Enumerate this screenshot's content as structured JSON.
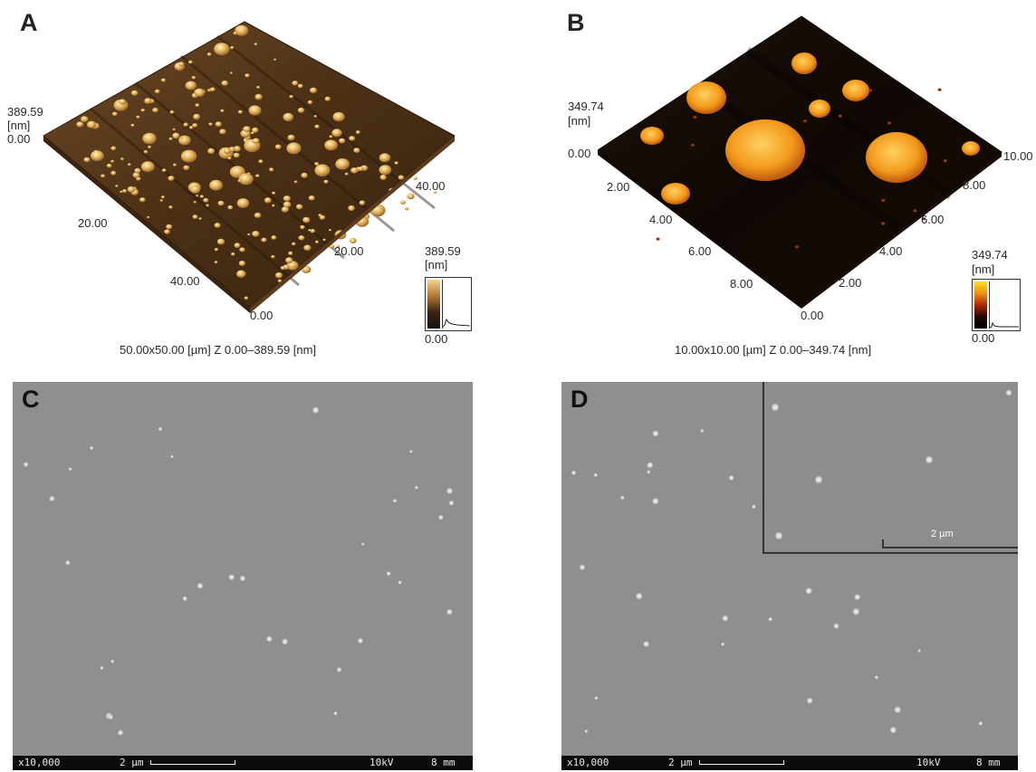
{
  "panels": {
    "a": {
      "letter": "A",
      "z_max": "389.59",
      "z_unit": "[nm]",
      "z_min": "0.00",
      "x_ticks": [
        "20.00",
        "40.00"
      ],
      "y_ticks": [
        "40.00",
        "20.00",
        "0.00"
      ],
      "cb_max": "389.59",
      "cb_unit": "[nm]",
      "cb_min": "0.00",
      "caption": "50.00x50.00 [µm]   Z 0.00–389.59 [nm]"
    },
    "b": {
      "letter": "B",
      "z_max": "349.74",
      "z_unit": "[nm]",
      "z_min": "0.00",
      "x_ticks": [
        "2.00",
        "4.00",
        "6.00",
        "8.00"
      ],
      "y_ticks": [
        "10.00",
        "8.00",
        "6.00",
        "4.00",
        "2.00",
        "0.00"
      ],
      "cb_max": "349.74",
      "cb_unit": "[nm]",
      "cb_min": "0.00",
      "caption": "10.00x10.00 [µm]   Z 0.00–349.74 [nm]"
    },
    "c": {
      "letter": "C",
      "magnification": "x10,000",
      "scale": "2 µm",
      "voltage": "10kV",
      "wd": "8 mm"
    },
    "d": {
      "letter": "D",
      "magnification": "x10,000",
      "scale": "2 µm",
      "voltage": "10kV",
      "wd": "8 mm",
      "inset_scale": "2 µm"
    }
  },
  "colors": {
    "afm_a_surface": "#5a3a1e",
    "afm_a_particle": "#e8b860",
    "afm_b_surface": "#1a0d05",
    "afm_b_particle": "#f5a020",
    "sem_background": "#8f8f8f"
  }
}
